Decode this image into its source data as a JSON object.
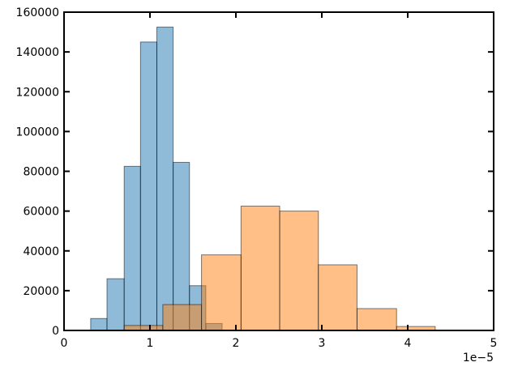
{
  "chart_data": {
    "type": "histogram",
    "series": [
      {
        "color": "#1f77b4",
        "bins": [
          0.31,
          0.5,
          0.7,
          0.89,
          1.08,
          1.27,
          1.46,
          1.65,
          1.84
        ],
        "values": [
          6000,
          26000,
          82500,
          145000,
          152500,
          84500,
          22500,
          3500
        ]
      },
      {
        "color": "#ff7f0e",
        "bins": [
          0.7,
          1.15,
          1.6,
          2.06,
          2.51,
          2.96,
          3.41,
          3.87,
          4.32
        ],
        "values": [
          2500,
          13000,
          38000,
          62500,
          60000,
          33000,
          11000,
          2000
        ]
      }
    ],
    "xlim": [
      0,
      5
    ],
    "xticks": [
      0,
      1,
      2,
      3,
      4,
      5
    ],
    "x_offset_label": "1e−5",
    "ylim": [
      0,
      160000
    ],
    "yticks": [
      0,
      20000,
      40000,
      60000,
      80000,
      100000,
      120000,
      140000,
      160000
    ]
  }
}
